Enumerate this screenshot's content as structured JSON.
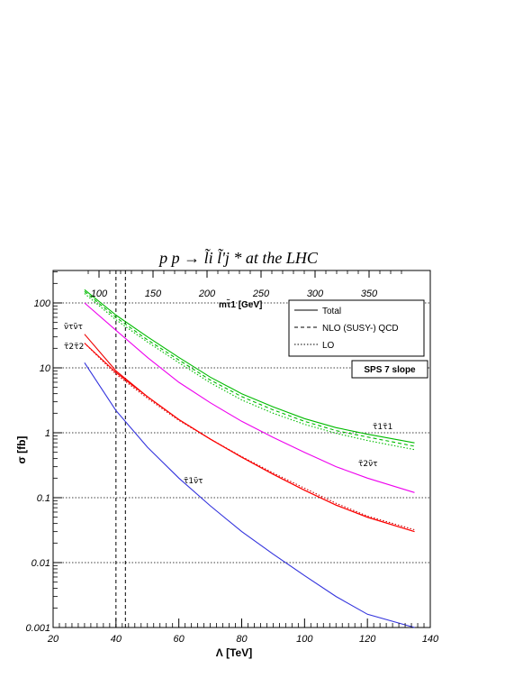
{
  "chart_data": {
    "type": "line",
    "title": "p p → l̃i l̃'j * at the LHC",
    "xlabel": "Λ [TeV]",
    "ylabel": "σ [fb]",
    "x2label": "mτ̃1 [GeV]",
    "xlim": [
      20,
      140
    ],
    "ylim": [
      0.001,
      250
    ],
    "yscale": "log",
    "x_ticks": [
      "20",
      "40",
      "60",
      "80",
      "100",
      "120",
      "140"
    ],
    "y_ticks": [
      "0.001",
      "0.01",
      "0.1",
      "1",
      "10",
      "100"
    ],
    "x2_ticks": [
      "100",
      "150",
      "200",
      "250",
      "300",
      "350"
    ],
    "grid": "horizontal dotted",
    "legend": {
      "placement": "top-right",
      "entries": [
        "Total",
        "NLO (SUSY-) QCD",
        "LO"
      ]
    },
    "benchmark_label": "SPS 7 slope",
    "vertical_lines_x": [
      40,
      43
    ],
    "series": [
      {
        "label": "τ̃1τ̃1",
        "color": "#00bb00",
        "style": "solid",
        "x": [
          30,
          40,
          50,
          60,
          70,
          80,
          90,
          100,
          110,
          120,
          135
        ],
        "y": [
          160,
          65,
          30,
          14.5,
          7.2,
          4.0,
          2.5,
          1.65,
          1.2,
          0.95,
          0.7
        ]
      },
      {
        "color": "#00bb00",
        "style": "dotted",
        "x": [
          30,
          40,
          50,
          60,
          70,
          80,
          90,
          100,
          110,
          120,
          135
        ],
        "y": [
          140,
          55,
          25,
          12.0,
          5.9,
          3.2,
          2.0,
          1.35,
          0.98,
          0.76,
          0.55
        ]
      },
      {
        "color": "#00bb00",
        "style": "dashed",
        "x": [
          30,
          40,
          50,
          60,
          70,
          80,
          90,
          100,
          110,
          120,
          135
        ],
        "y": [
          150,
          60,
          27,
          13.2,
          6.5,
          3.6,
          2.25,
          1.5,
          1.08,
          0.86,
          0.62
        ]
      },
      {
        "label": "τ̃2ν̃τ",
        "color": "#ee00ee",
        "style": "solid",
        "x": [
          30,
          40,
          50,
          60,
          70,
          80,
          90,
          100,
          110,
          120,
          135
        ],
        "y": [
          100,
          38,
          14.5,
          6.0,
          2.9,
          1.5,
          0.85,
          0.5,
          0.3,
          0.2,
          0.12
        ]
      },
      {
        "label": "τ̃2τ̃2",
        "color": "#ee0000",
        "style": "solid",
        "x": [
          30,
          40,
          50,
          60,
          70,
          80,
          90,
          100,
          110,
          120,
          135
        ],
        "y": [
          33,
          9.0,
          3.6,
          1.6,
          0.8,
          0.42,
          0.23,
          0.13,
          0.077,
          0.05,
          0.03
        ]
      },
      {
        "color": "#cc0000",
        "style": "dotted",
        "x": [
          30,
          40,
          50,
          60,
          70,
          80,
          90,
          100,
          110,
          120,
          135
        ],
        "y": [
          24,
          8.0,
          3.4,
          1.55,
          0.8,
          0.43,
          0.24,
          0.14,
          0.082,
          0.052,
          0.032
        ]
      },
      {
        "label": "ν̃τν̃τ",
        "color": "#ff0000",
        "style": "solid",
        "x": [
          30,
          40,
          45,
          50,
          60,
          70,
          80,
          90,
          100,
          110,
          120,
          135
        ],
        "y": [
          24,
          8.5,
          5.5,
          3.6,
          1.6,
          0.8,
          0.42,
          0.23,
          0.13,
          0.077,
          0.05,
          0.03
        ]
      },
      {
        "label": "τ̃1ν̃τ",
        "color": "#3333dd",
        "style": "solid",
        "x": [
          30,
          40,
          50,
          60,
          70,
          80,
          90,
          100,
          110,
          120,
          135
        ],
        "y": [
          12,
          2.2,
          0.6,
          0.2,
          0.075,
          0.03,
          0.0135,
          0.0063,
          0.003,
          0.0016,
          0.001
        ]
      }
    ]
  }
}
